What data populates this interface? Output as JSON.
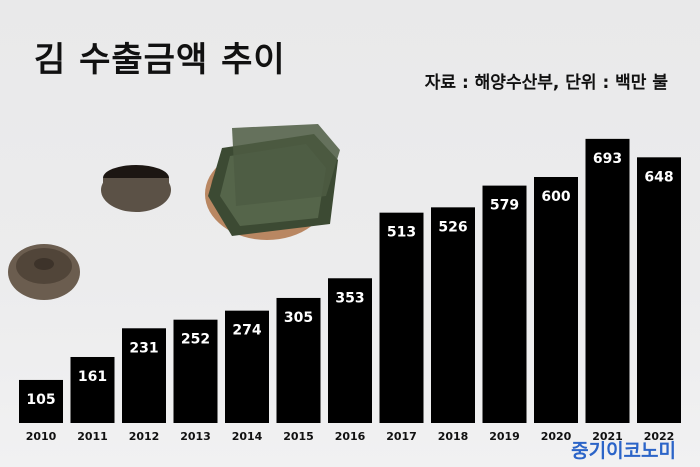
{
  "header": {
    "title": "김 수출금액 추이",
    "source": "자료 : 해양수산부, 단위 : 백만 불"
  },
  "watermark": "중기이코노미",
  "colors": {
    "bar": "#000000",
    "bar_label": "#ffffff",
    "axis_label": "#111111",
    "watermark": "#2b64c8"
  },
  "chart_data": {
    "type": "bar",
    "title": "김 수출금액 추이",
    "categories": [
      "2010",
      "2011",
      "2012",
      "2013",
      "2014",
      "2015",
      "2016",
      "2017",
      "2018",
      "2019",
      "2020",
      "2021",
      "2022"
    ],
    "values": [
      105,
      161,
      231,
      252,
      274,
      305,
      353,
      513,
      526,
      579,
      600,
      693,
      648
    ],
    "grid": false,
    "legend": "none"
  }
}
